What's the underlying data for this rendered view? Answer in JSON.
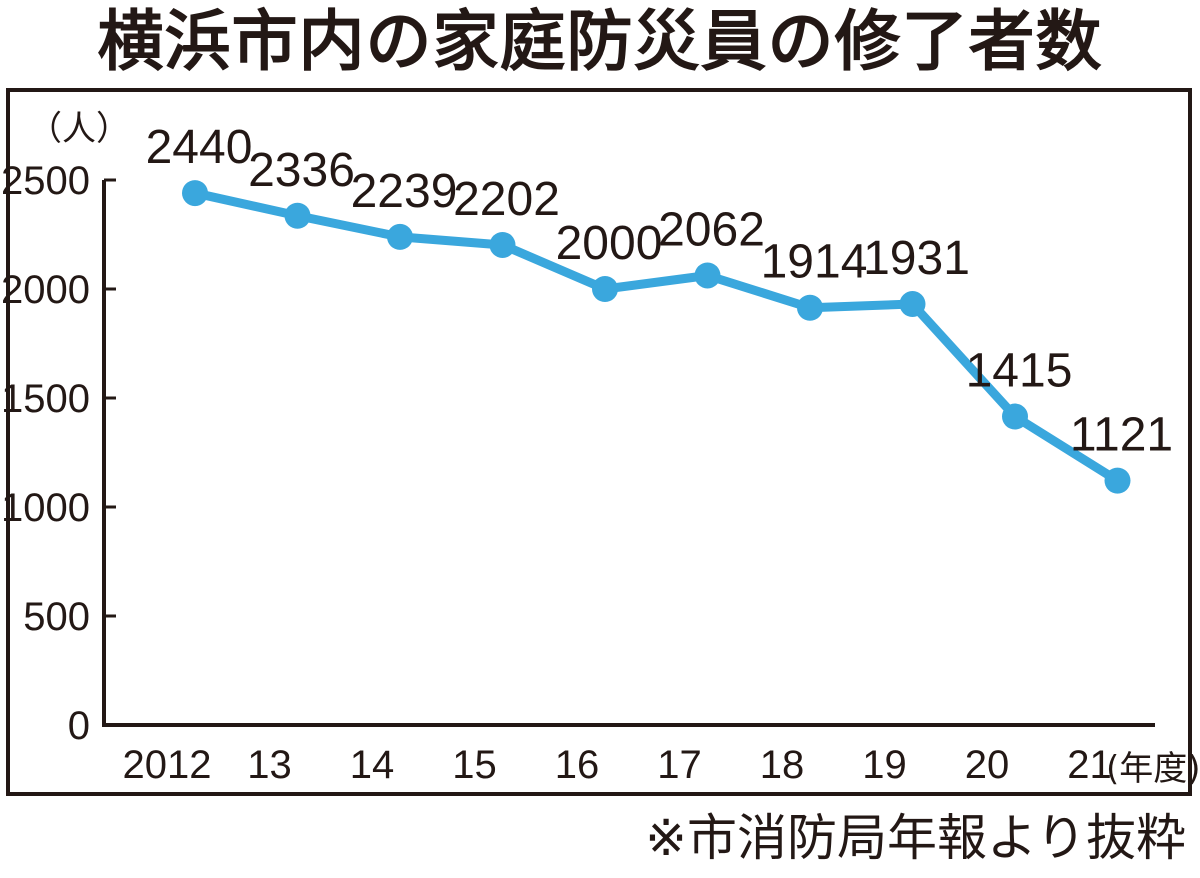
{
  "title": "横浜市内の家庭防災員の修了者数",
  "source_note": "※市消防局年報より抜粋",
  "chart_data": {
    "type": "line",
    "x": [
      "2012",
      "13",
      "14",
      "15",
      "16",
      "17",
      "18",
      "19",
      "20",
      "21"
    ],
    "series": [
      {
        "values": [
          2440,
          2336,
          2239,
          2202,
          2000,
          2062,
          1914,
          1931,
          1415,
          1121
        ],
        "color": "#3aa7dd"
      }
    ],
    "data_labels": [
      "2440",
      "2336",
      "2239",
      "2202",
      "2000",
      "2062",
      "1914",
      "1931",
      "1415",
      "1121"
    ],
    "y_ticks": [
      0,
      500,
      1000,
      1500,
      2000,
      2500
    ],
    "ylim": [
      0,
      2500
    ],
    "ylabel": "（人）",
    "xlabel": "(年度)",
    "grid": false
  }
}
